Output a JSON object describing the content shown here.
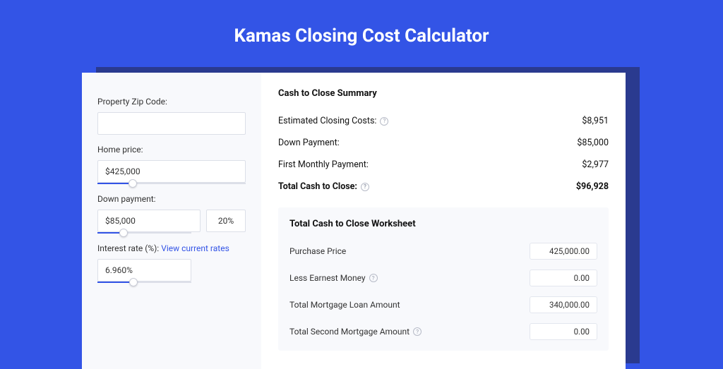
{
  "colors": {
    "page_bg": "#3354e6",
    "shadow": "#2a3a8f",
    "card_bg": "#ffffff",
    "panel_bg": "#f8f9fc",
    "border": "#dcdfe8",
    "accent": "#3354e6",
    "text": "#333333",
    "muted": "#9aa0af"
  },
  "title": "Kamas Closing Cost Calculator",
  "inputs": {
    "zip_label": "Property Zip Code:",
    "zip_value": "",
    "home_price_label": "Home price:",
    "home_price_value": "$425,000",
    "home_price_slider_pct": 24,
    "down_payment_label": "Down payment:",
    "down_payment_value": "$85,000",
    "down_payment_pct": "20%",
    "down_payment_slider_pct": 28,
    "interest_label": "Interest rate (%): ",
    "interest_link": "View current rates",
    "interest_value": "6.960%",
    "interest_slider_pct": 38
  },
  "summary": {
    "title": "Cash to Close Summary",
    "rows": [
      {
        "label": "Estimated Closing Costs:",
        "help": true,
        "value": "$8,951",
        "bold": false
      },
      {
        "label": "Down Payment:",
        "help": false,
        "value": "$85,000",
        "bold": false
      },
      {
        "label": "First Monthly Payment:",
        "help": false,
        "value": "$2,977",
        "bold": false
      },
      {
        "label": "Total Cash to Close:",
        "help": true,
        "value": "$96,928",
        "bold": true
      }
    ]
  },
  "worksheet": {
    "title": "Total Cash to Close Worksheet",
    "rows": [
      {
        "label": "Purchase Price",
        "help": false,
        "value": "425,000.00"
      },
      {
        "label": "Less Earnest Money",
        "help": true,
        "value": "0.00"
      },
      {
        "label": "Total Mortgage Loan Amount",
        "help": false,
        "value": "340,000.00"
      },
      {
        "label": "Total Second Mortgage Amount",
        "help": true,
        "value": "0.00"
      }
    ]
  }
}
